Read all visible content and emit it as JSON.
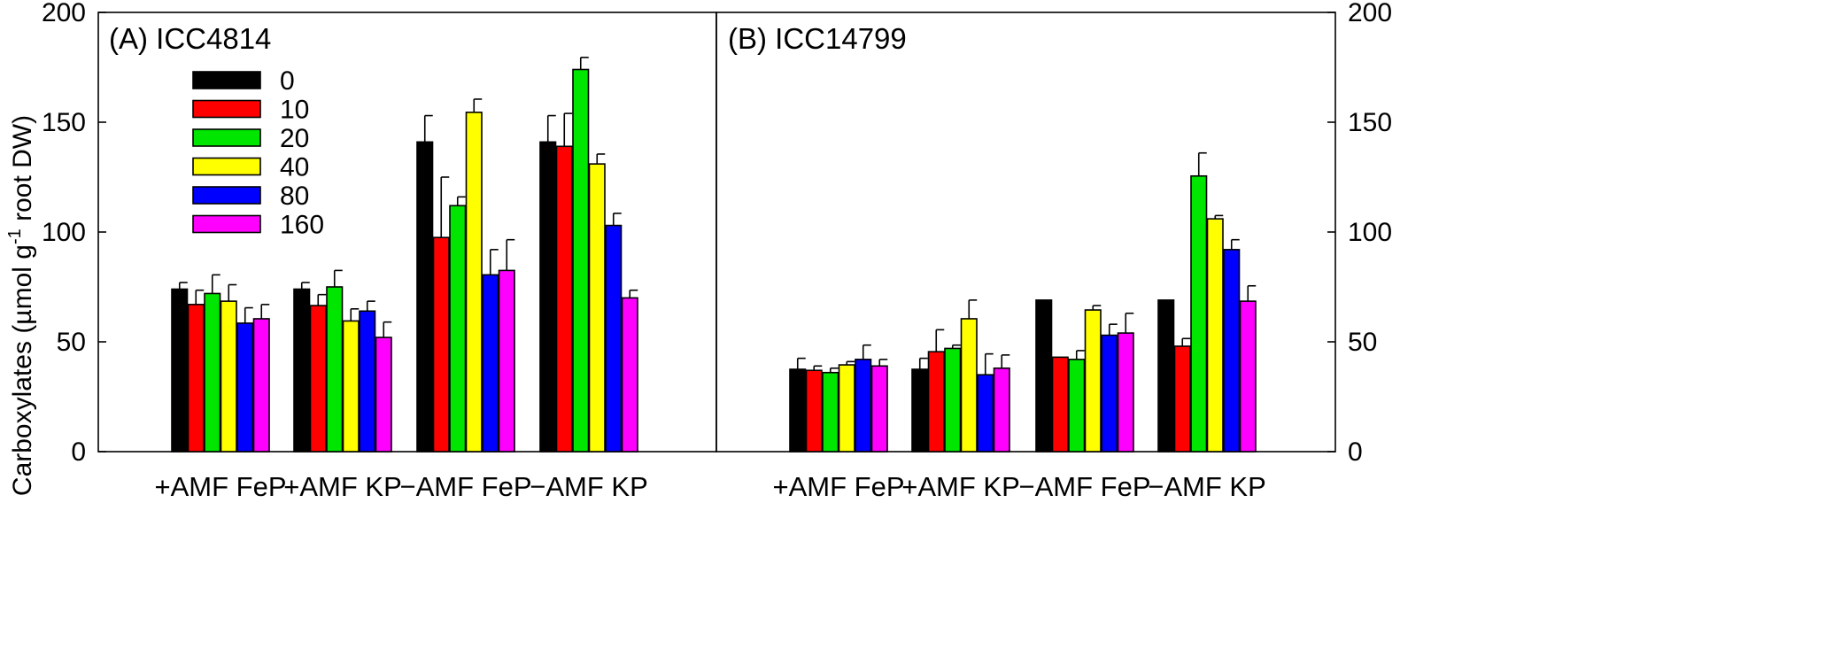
{
  "chart_data": [
    {
      "type": "bar",
      "title": "(A) ICC4814",
      "ylabel": "Carboxylates (µmol g⁻¹ root DW)",
      "ylabel_parts": {
        "main": "Carboxylates (µmol g",
        "sup": "-1",
        "tail": " root DW)"
      },
      "ylim": [
        0,
        200
      ],
      "yticks": [
        0,
        50,
        100,
        150,
        200
      ],
      "y_axis_side": "left",
      "legend": "top-left",
      "categories": [
        "+AMF FeP",
        "+AMF KP",
        "−AMF FeP",
        "−AMF KP"
      ],
      "series": [
        {
          "name": "0",
          "color": "#000000",
          "values": [
            74,
            74,
            141,
            141
          ],
          "errors": [
            3,
            3,
            12,
            12
          ]
        },
        {
          "name": "10",
          "color": "#ff0000",
          "values": [
            67,
            66.5,
            97.5,
            139
          ],
          "errors": [
            6.5,
            5,
            27.5,
            15
          ]
        },
        {
          "name": "20",
          "color": "#00e600",
          "values": [
            72,
            75,
            112,
            174
          ],
          "errors": [
            8.5,
            7.5,
            4,
            5.5
          ]
        },
        {
          "name": "40",
          "color": "#ffff00",
          "values": [
            68.5,
            59.5,
            154.5,
            131
          ],
          "errors": [
            7.5,
            5.5,
            6,
            4.5
          ]
        },
        {
          "name": "80",
          "color": "#0000ff",
          "values": [
            58.5,
            64,
            80.5,
            103
          ],
          "errors": [
            7,
            4.5,
            11.5,
            5.5
          ]
        },
        {
          "name": "160",
          "color": "#ff00ff",
          "values": [
            60.5,
            52,
            82.5,
            70
          ],
          "errors": [
            6.5,
            7,
            14,
            3.5
          ]
        }
      ]
    },
    {
      "type": "bar",
      "title": "(B) ICC14799",
      "ylim": [
        0,
        200
      ],
      "yticks": [
        0,
        50,
        100,
        150,
        200
      ],
      "y_axis_side": "right",
      "categories": [
        "+AMF FeP",
        "+AMF KP",
        "−AMF FeP",
        "−AMF KP"
      ],
      "series": [
        {
          "name": "0",
          "color": "#000000",
          "values": [
            37.5,
            37.5,
            69,
            69
          ],
          "errors": [
            5,
            5,
            0,
            0
          ]
        },
        {
          "name": "10",
          "color": "#ff0000",
          "values": [
            37,
            45.5,
            43,
            48
          ],
          "errors": [
            2,
            10,
            0,
            3.5
          ]
        },
        {
          "name": "20",
          "color": "#00e600",
          "values": [
            36,
            47,
            42,
            125.5
          ],
          "errors": [
            2,
            1.5,
            4,
            10.5
          ]
        },
        {
          "name": "40",
          "color": "#ffff00",
          "values": [
            39.5,
            60.5,
            64.5,
            106
          ],
          "errors": [
            1.5,
            8.5,
            2,
            1.5
          ]
        },
        {
          "name": "80",
          "color": "#0000ff",
          "values": [
            42,
            35,
            53,
            92
          ],
          "errors": [
            6.5,
            9.5,
            5,
            4.5
          ]
        },
        {
          "name": "160",
          "color": "#ff00ff",
          "values": [
            39,
            38,
            54,
            68.5
          ],
          "errors": [
            3,
            6,
            9,
            7
          ]
        }
      ]
    }
  ]
}
